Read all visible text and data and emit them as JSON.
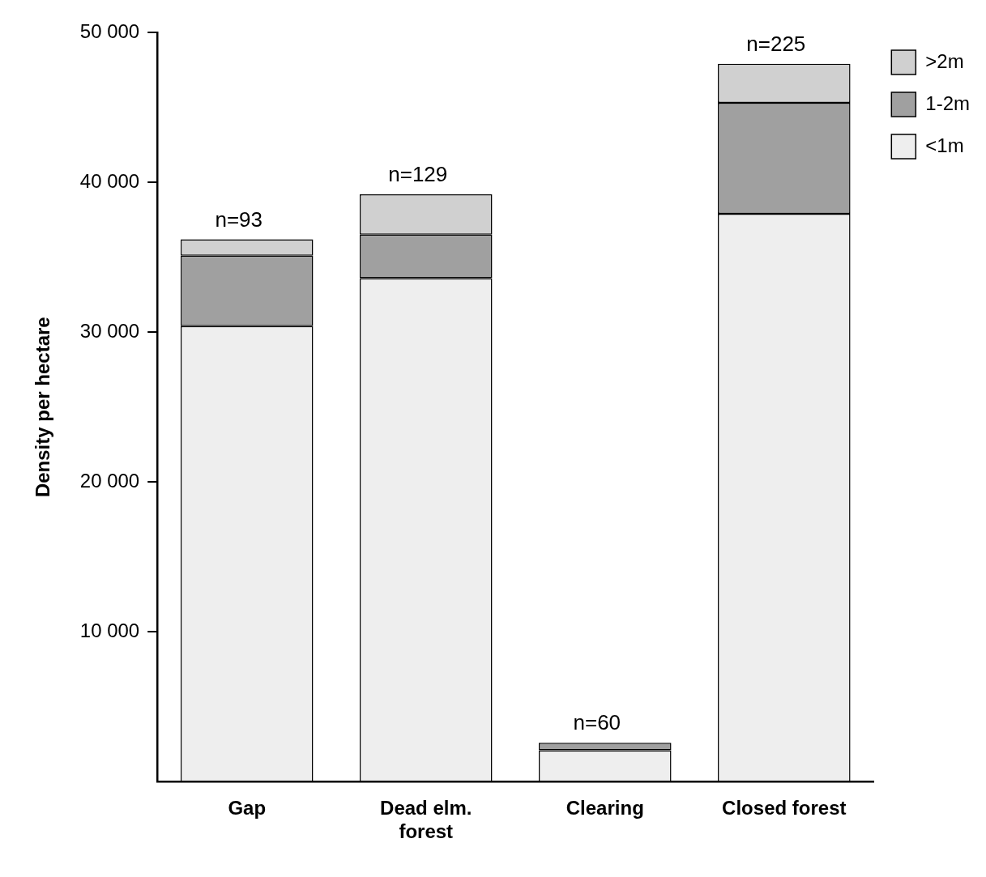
{
  "chart_data": {
    "type": "bar",
    "stacked": true,
    "ylabel": "Density per hectare",
    "categories": [
      "Gap",
      "Dead elm. forest",
      "Clearing",
      "Closed forest"
    ],
    "series": [
      {
        "name": "<1m",
        "color": "#eeeeee",
        "values": [
          30400,
          33600,
          2100,
          37900
        ]
      },
      {
        "name": "1-2m",
        "color": "#a0a0a0",
        "values": [
          4700,
          2900,
          500,
          7400
        ]
      },
      {
        "name": ">2m",
        "color": "#d0d0d0",
        "values": [
          1100,
          2700,
          0,
          2600
        ]
      }
    ],
    "annotations": [
      {
        "text": "n=93",
        "x": "Gap",
        "y": 36200
      },
      {
        "text": "n=129",
        "x": "Dead elm. forest",
        "y": 39200
      },
      {
        "text": "n=60",
        "x": "Clearing",
        "y": 2600
      },
      {
        "text": "n=225",
        "x": "Closed forest",
        "y": 47900
      }
    ],
    "ylim": [
      0,
      50000
    ],
    "yticks": [
      {
        "value": 10000,
        "label": "10 000"
      },
      {
        "value": 20000,
        "label": "20 000"
      },
      {
        "value": 30000,
        "label": "30 000"
      },
      {
        "value": 40000,
        "label": "40 000"
      },
      {
        "value": 50000,
        "label": "50 000"
      }
    ],
    "grid": false,
    "legend": "top right"
  }
}
